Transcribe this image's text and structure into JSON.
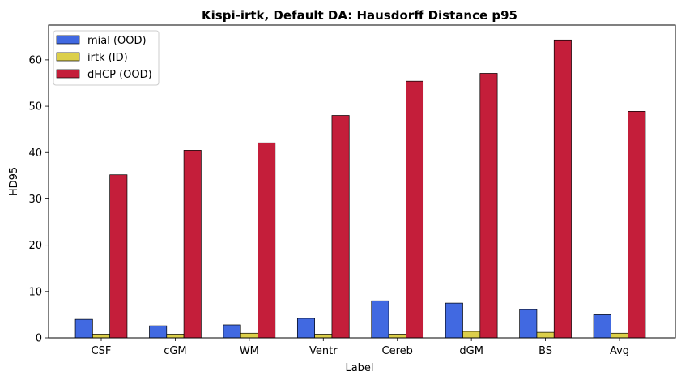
{
  "chart_data": {
    "type": "bar",
    "title": "Kispi-irtk, Default DA: Hausdorff Distance p95",
    "xlabel": "Label",
    "ylabel": "HD95",
    "categories": [
      "CSF",
      "cGM",
      "WM",
      "Ventr",
      "Cereb",
      "dGM",
      "BS",
      "Avg"
    ],
    "ylim": [
      0,
      67.5
    ],
    "yticks": [
      0,
      10,
      20,
      30,
      40,
      50,
      60
    ],
    "grid": false,
    "legend_position": "upper-left",
    "series": [
      {
        "name": "mial (OOD)",
        "color": "#4169e1",
        "values": [
          4.0,
          2.6,
          2.8,
          4.2,
          8.0,
          7.5,
          6.1,
          5.0
        ]
      },
      {
        "name": "irtk (ID)",
        "color": "#dccf4a",
        "values": [
          0.8,
          0.8,
          1.0,
          0.8,
          0.8,
          1.4,
          1.2,
          1.0
        ]
      },
      {
        "name": "dHCP (OOD)",
        "color": "#c41e3a",
        "values": [
          35.2,
          40.5,
          42.1,
          48.0,
          55.4,
          57.1,
          64.3,
          48.9
        ]
      }
    ]
  }
}
